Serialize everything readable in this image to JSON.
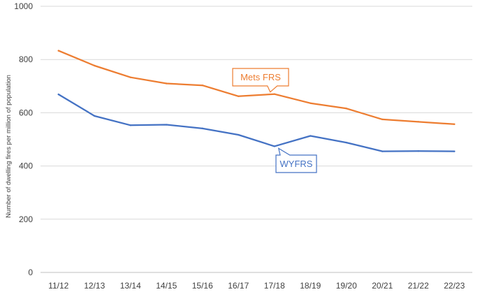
{
  "chart_data": {
    "type": "line",
    "title": "",
    "xlabel": "",
    "ylabel": "Number of dwelling fires per million of population",
    "ylim": [
      0,
      1000
    ],
    "yticks": [
      0,
      200,
      400,
      600,
      800,
      1000
    ],
    "grid": true,
    "categories": [
      "11/12",
      "12/13",
      "13/14",
      "14/15",
      "15/16",
      "16/17",
      "17/18",
      "18/19",
      "19/20",
      "20/21",
      "21/22",
      "22/23"
    ],
    "series": [
      {
        "name": "Mets FRS",
        "color": "#ED7D31",
        "values": [
          833,
          777,
          733,
          710,
          703,
          662,
          670,
          636,
          616,
          575,
          566,
          557
        ],
        "callout_category": "17/18"
      },
      {
        "name": "WYFRS",
        "color": "#4472C4",
        "values": [
          669,
          588,
          553,
          555,
          541,
          517,
          474,
          513,
          488,
          455,
          456,
          455
        ],
        "callout_category": "17/18"
      }
    ]
  }
}
